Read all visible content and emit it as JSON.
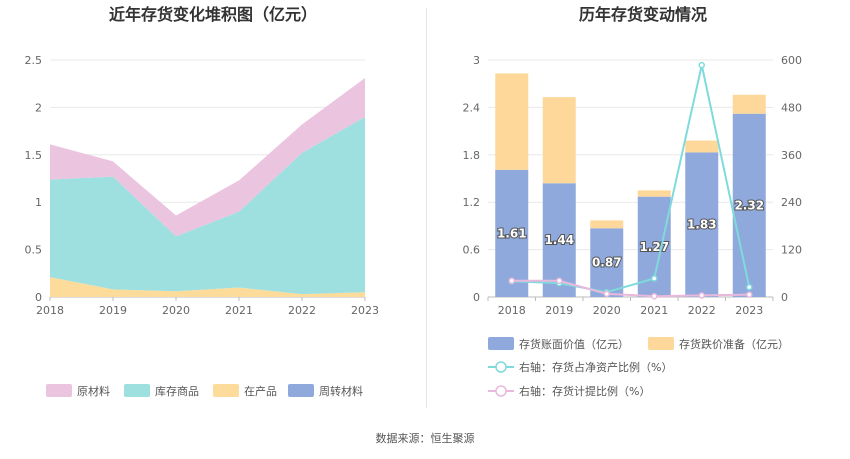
{
  "source_label": "数据来源：恒生聚源",
  "chart_data": [
    {
      "type": "area",
      "stacked": true,
      "title": "近年存货变化堆积图（亿元）",
      "categories": [
        "2018",
        "2019",
        "2020",
        "2021",
        "2022",
        "2023"
      ],
      "ylim": [
        0,
        2.5
      ],
      "yticks": [
        0,
        0.5,
        1,
        1.5,
        2,
        2.5
      ],
      "grid": true,
      "legend_position": "bottom",
      "series": [
        {
          "name": "原材料",
          "color": "#ebc4e0",
          "values": [
            0.37,
            0.16,
            0.22,
            0.33,
            0.3,
            0.41
          ]
        },
        {
          "name": "库存商品",
          "color": "#9ee0e0",
          "values": [
            1.03,
            1.19,
            0.58,
            0.8,
            1.49,
            1.85
          ]
        },
        {
          "name": "在产品",
          "color": "#fddb9a",
          "values": [
            0.21,
            0.08,
            0.06,
            0.1,
            0.03,
            0.05
          ]
        },
        {
          "name": "周转材料",
          "color": "#8fa9dc",
          "values": [
            0.0,
            0.0,
            0.0,
            0.0,
            0.0,
            0.0
          ]
        }
      ],
      "legend_order": [
        "原材料",
        "库存商品",
        "在产品",
        "周转材料"
      ]
    },
    {
      "type": "bar",
      "stacked": true,
      "title": "历年存货变动情况",
      "categories": [
        "2018",
        "2019",
        "2020",
        "2021",
        "2022",
        "2023"
      ],
      "ylim": [
        0,
        3
      ],
      "yticks": [
        "0",
        "0.6",
        "1.2",
        "1.8",
        "2.4",
        "3"
      ],
      "y2lim": [
        0,
        600
      ],
      "y2ticks": [
        "0",
        "120",
        "240",
        "360",
        "480",
        "600"
      ],
      "grid": true,
      "legend_position": "bottom",
      "bar_series": [
        {
          "name": "存货账面价值（亿元）",
          "color": "#8fa9dc",
          "values": [
            1.61,
            1.44,
            0.87,
            1.27,
            1.83,
            2.32
          ],
          "labels": [
            "1.61",
            "1.44",
            "0.87",
            "1.27",
            "1.83",
            "2.32"
          ]
        },
        {
          "name": "存货跌价准备（亿元）",
          "color": "#fdd89a",
          "values": [
            1.22,
            1.09,
            0.1,
            0.08,
            0.15,
            0.24
          ]
        }
      ],
      "line_series": [
        {
          "name": "右轴：存货占净资产比例（%）",
          "color": "#7fdbdb",
          "axis": "right",
          "values": [
            40,
            35,
            12,
            47,
            587,
            25
          ]
        },
        {
          "name": "右轴：存货计提比例（%）",
          "color": "#e9b8dc",
          "axis": "right",
          "values": [
            41,
            41,
            8,
            2,
            4,
            6
          ]
        }
      ]
    }
  ]
}
